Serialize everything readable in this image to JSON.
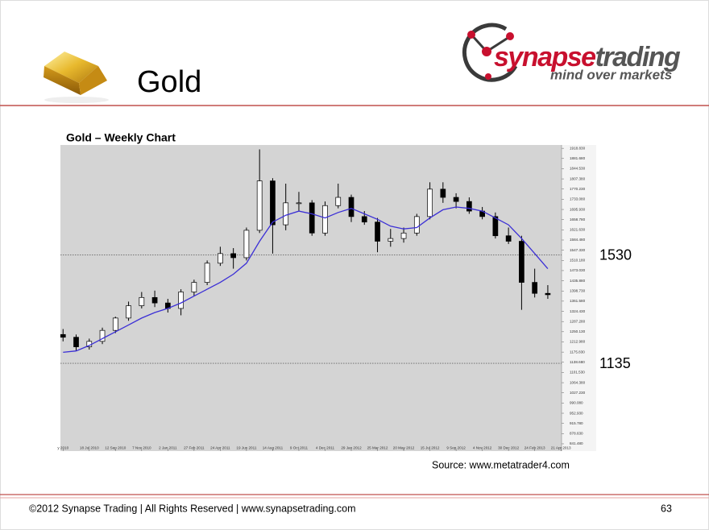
{
  "header": {
    "title": "Gold",
    "logo_brand_1": "synapse",
    "logo_brand_2": "trading",
    "logo_tagline": "mind over markets"
  },
  "chart_data": {
    "type": "candlestick",
    "title": "Gold – Weekly Chart",
    "source": "Source: www.metatrader4.com",
    "open": [
      1240,
      1230,
      1195,
      1215,
      1255,
      1300,
      1345,
      1375,
      1355,
      1335,
      1395,
      1430,
      1500,
      1535,
      1520,
      1620,
      1800,
      1640,
      1720,
      1720,
      1610,
      1710,
      1740,
      1670,
      1650,
      1580,
      1590,
      1610,
      1670,
      1770,
      1740,
      1725,
      1690,
      1670,
      1600,
      1580,
      1430,
      1390
    ],
    "high": [
      1260,
      1240,
      1225,
      1265,
      1305,
      1360,
      1395,
      1400,
      1370,
      1405,
      1440,
      1510,
      1560,
      1555,
      1630,
      1915,
      1810,
      1790,
      1760,
      1730,
      1725,
      1790,
      1750,
      1690,
      1665,
      1625,
      1630,
      1680,
      1795,
      1795,
      1755,
      1740,
      1705,
      1685,
      1630,
      1600,
      1480,
      1420
    ],
    "low": [
      1215,
      1180,
      1185,
      1205,
      1245,
      1290,
      1335,
      1340,
      1320,
      1310,
      1380,
      1420,
      1490,
      1480,
      1510,
      1610,
      1535,
      1620,
      1690,
      1600,
      1600,
      1700,
      1650,
      1640,
      1540,
      1560,
      1575,
      1600,
      1660,
      1720,
      1700,
      1680,
      1660,
      1590,
      1570,
      1330,
      1375,
      1370
    ],
    "close": [
      1230,
      1195,
      1215,
      1255,
      1300,
      1345,
      1375,
      1355,
      1335,
      1395,
      1430,
      1500,
      1535,
      1520,
      1620,
      1800,
      1640,
      1720,
      1720,
      1610,
      1710,
      1740,
      1670,
      1650,
      1580,
      1590,
      1610,
      1670,
      1770,
      1740,
      1725,
      1690,
      1670,
      1600,
      1580,
      1430,
      1390,
      1385
    ],
    "moving_average": {
      "color": "#3b2fd6",
      "values": [
        1175,
        1180,
        1200,
        1225,
        1250,
        1275,
        1300,
        1320,
        1335,
        1355,
        1380,
        1405,
        1430,
        1460,
        1500,
        1580,
        1650,
        1675,
        1690,
        1680,
        1665,
        1685,
        1700,
        1680,
        1660,
        1635,
        1625,
        1630,
        1665,
        1695,
        1705,
        1700,
        1690,
        1665,
        1640,
        1590,
        1535,
        1480
      ]
    },
    "up_color": "#ffffff",
    "down_color": "#000000",
    "ylim": [
      815,
      1931
    ],
    "yticks": [
      {
        "value": 841.48,
        "label": "841.480"
      },
      {
        "value": 878.63,
        "label": "878.630"
      },
      {
        "value": 915.78,
        "label": "915.780"
      },
      {
        "value": 952.93,
        "label": "952.930"
      },
      {
        "value": 990.08,
        "label": "990.080"
      },
      {
        "value": 1027.23,
        "label": "1027.230"
      },
      {
        "value": 1064.38,
        "label": "1064.380"
      },
      {
        "value": 1101.53,
        "label": "1101.530"
      },
      {
        "value": 1138.68,
        "label": "1138.680"
      },
      {
        "value": 1175.83,
        "label": "1175.830"
      },
      {
        "value": 1212.98,
        "label": "1212.980"
      },
      {
        "value": 1250.13,
        "label": "1250.130"
      },
      {
        "value": 1287.28,
        "label": "1287.280"
      },
      {
        "value": 1324.43,
        "label": "1324.430"
      },
      {
        "value": 1361.58,
        "label": "1361.580"
      },
      {
        "value": 1398.73,
        "label": "1398.730"
      },
      {
        "value": 1435.88,
        "label": "1435.880"
      },
      {
        "value": 1473.03,
        "label": "1473.030"
      },
      {
        "value": 1510.18,
        "label": "1510.180"
      },
      {
        "value": 1547.33,
        "label": "1547.330"
      },
      {
        "value": 1584.48,
        "label": "1584.480"
      },
      {
        "value": 1621.63,
        "label": "1621.630"
      },
      {
        "value": 1658.78,
        "label": "1658.780"
      },
      {
        "value": 1695.93,
        "label": "1695.930"
      },
      {
        "value": 1733.08,
        "label": "1733.080"
      },
      {
        "value": 1770.23,
        "label": "1770.230"
      },
      {
        "value": 1807.38,
        "label": "1807.380"
      },
      {
        "value": 1844.53,
        "label": "1844.530"
      },
      {
        "value": 1881.68,
        "label": "1881.680"
      },
      {
        "value": 1918.83,
        "label": "1918.830"
      }
    ],
    "xlim": [
      -0.2,
      38.05
    ],
    "xticks": [
      {
        "value": 0,
        "label": "y 2010"
      },
      {
        "value": 2,
        "label": "18 Jul 2010"
      },
      {
        "value": 4,
        "label": "12 Sep 2010"
      },
      {
        "value": 6,
        "label": "7 Nov 2010"
      },
      {
        "value": 8,
        "label": "2 Jan 2011"
      },
      {
        "value": 10,
        "label": "27 Feb 2011"
      },
      {
        "value": 12,
        "label": "24 Apr 2011"
      },
      {
        "value": 14,
        "label": "19 Jun 2011"
      },
      {
        "value": 16,
        "label": "14 Aug 2011"
      },
      {
        "value": 18,
        "label": "9 Oct 2011"
      },
      {
        "value": 20,
        "label": "4 Dec 2011"
      },
      {
        "value": 22,
        "label": "29 Jan 2012"
      },
      {
        "value": 24,
        "label": "25 Mar 2012"
      },
      {
        "value": 26,
        "label": "20 May 2012"
      },
      {
        "value": 28,
        "label": "15 Jul 2012"
      },
      {
        "value": 30,
        "label": "9 Sep 2012"
      },
      {
        "value": 32,
        "label": "4 Nov 2012"
      },
      {
        "value": 34,
        "label": "30 Dec 2012"
      },
      {
        "value": 36,
        "label": "24 Feb 2013"
      },
      {
        "value": 38,
        "label": "21 Apr 2013"
      }
    ],
    "hlines": [
      1530,
      1135
    ]
  },
  "footer": {
    "text": "©2012 Synapse Trading | All Rights Reserved | www.synapsetrading.com",
    "page": "63"
  }
}
